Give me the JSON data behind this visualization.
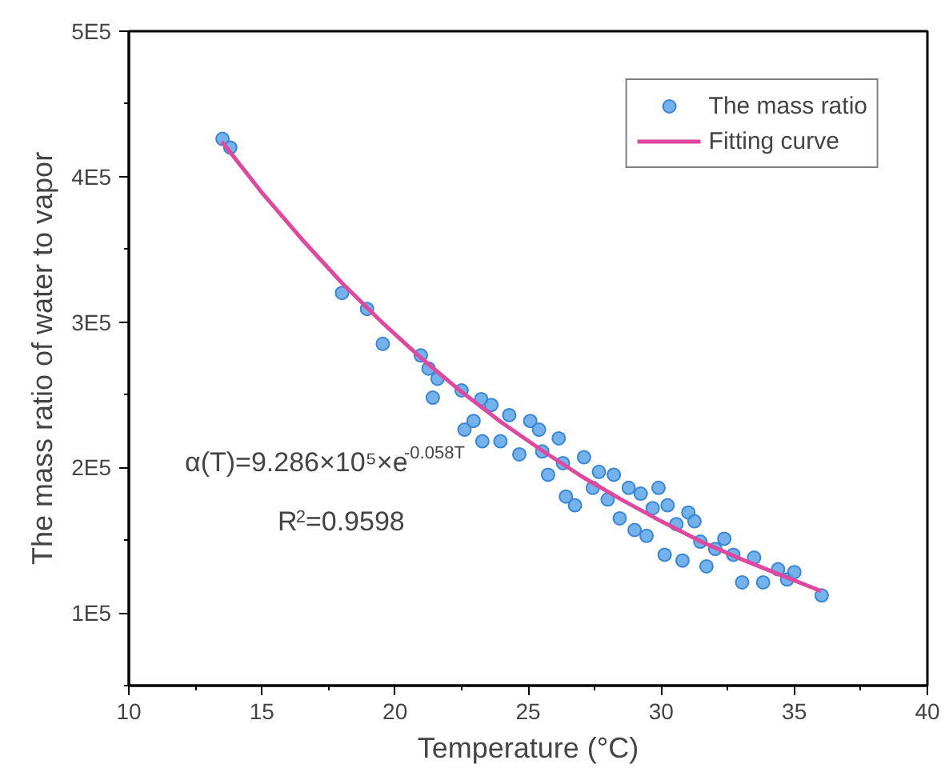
{
  "chart_data": {
    "type": "scatter",
    "xlabel": "Temperature (°C)",
    "ylabel": "The mass ratio of water to vapor",
    "xlim": [
      10,
      40
    ],
    "xticks": [
      10,
      15,
      20,
      25,
      30,
      35,
      40
    ],
    "ylim": [
      50000,
      500000
    ],
    "yticks": [
      {
        "value": 100000,
        "label": "1E5"
      },
      {
        "value": 200000,
        "label": "2E5"
      },
      {
        "value": 300000,
        "label": "3E5"
      },
      {
        "value": 400000,
        "label": "4E5"
      },
      {
        "value": 500000,
        "label": "5E5"
      }
    ],
    "grid": false,
    "legend": "top right",
    "annotations": [
      "α(T)=9.286×10⁵×e$^{-0.058T}$",
      "R$^{2}$=0.9598"
    ],
    "series": [
      {
        "name": "The mass ratio",
        "marker": "circle",
        "color": "#5aa5e8",
        "x": [
          13.52,
          13.81,
          18.01,
          18.95,
          19.54,
          20.97,
          21.26,
          21.6,
          21.42,
          22.5,
          22.61,
          22.95,
          23.24,
          23.62,
          23.28,
          23.96,
          24.29,
          24.67,
          25.08,
          25.41,
          25.53,
          25.75,
          26.15,
          26.31,
          26.42,
          26.76,
          27.1,
          27.43,
          27.66,
          27.99,
          28.22,
          28.44,
          28.78,
          29.0,
          29.23,
          29.45,
          29.68,
          29.9,
          30.13,
          30.24,
          30.57,
          30.8,
          31.02,
          31.25,
          31.47,
          31.7,
          32.03,
          32.37,
          32.71,
          33.04,
          33.49,
          33.83,
          34.39,
          34.73,
          35.0,
          36.03
        ],
        "values": [
          426000,
          420000,
          320000,
          309000,
          285000,
          277000,
          268000,
          261000,
          248000,
          253000,
          226000,
          232000,
          247000,
          243000,
          218000,
          218000,
          236000,
          209000,
          232000,
          226000,
          211000,
          195000,
          220000,
          203000,
          180000,
          174000,
          207000,
          186000,
          197000,
          178000,
          195000,
          165000,
          186000,
          157000,
          182000,
          153000,
          172000,
          186000,
          140000,
          174000,
          161000,
          136000,
          169000,
          163000,
          149000,
          132000,
          144000,
          151000,
          140000,
          121000,
          138000,
          121000,
          130000,
          123000,
          128000,
          112000
        ]
      },
      {
        "name": "Fitting curve",
        "type": "line",
        "color": "#e0479e",
        "x": [
          13.5,
          15,
          16.5,
          18,
          19.5,
          21,
          22.5,
          24,
          25.5,
          27,
          28.5,
          30,
          31.5,
          33,
          34.5,
          36
        ],
        "values": [
          424000,
          389000,
          357000,
          327000,
          300000,
          275000,
          252000,
          231000,
          212000,
          194000,
          178000,
          163000,
          149000,
          137000,
          126000,
          115000
        ]
      }
    ]
  }
}
